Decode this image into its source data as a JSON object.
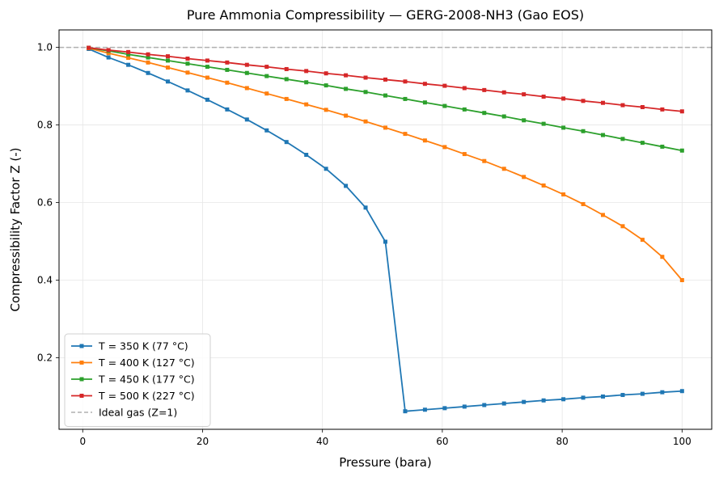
{
  "chart_data": {
    "type": "line",
    "title": "Pure Ammonia Compressibility — GERG-2008-NH3 (Gao EOS)",
    "xlabel": "Pressure (bara)",
    "ylabel": "Compressibility Factor Z (-)",
    "xlim": [
      -3.95,
      104.95
    ],
    "ylim": [
      0.0155,
      1.045
    ],
    "xticks": [
      0,
      20,
      40,
      60,
      80,
      100
    ],
    "yticks": [
      0.2,
      0.4,
      0.6,
      0.8,
      1.0
    ],
    "xtick_labels": [
      "0",
      "20",
      "40",
      "60",
      "80",
      "100"
    ],
    "ytick_labels": [
      "0.2",
      "0.4",
      "0.6",
      "0.8",
      "1.0"
    ],
    "grid": true,
    "legend_position": "lower-left",
    "x": [
      1.0,
      4.3,
      7.6,
      10.9,
      14.2,
      17.5,
      20.8,
      24.1,
      27.4,
      30.7,
      34.0,
      37.3,
      40.6,
      43.9,
      47.2,
      50.5,
      53.8,
      57.1,
      60.4,
      63.7,
      67.0,
      70.3,
      73.6,
      76.9,
      80.2,
      83.5,
      86.8,
      90.1,
      93.4,
      96.7,
      100.0
    ],
    "series": [
      {
        "name": "T = 350 K (77 °C)",
        "color": "#1f77b4",
        "values": [
          0.996,
          0.974,
          0.955,
          0.934,
          0.912,
          0.889,
          0.865,
          0.84,
          0.814,
          0.786,
          0.756,
          0.723,
          0.687,
          0.643,
          0.587,
          0.499,
          0.062,
          0.066,
          0.07,
          0.074,
          0.078,
          0.082,
          0.086,
          0.09,
          0.093,
          0.097,
          0.1,
          0.104,
          0.107,
          0.111,
          0.114
        ]
      },
      {
        "name": "T = 400 K (127 °C)",
        "color": "#ff7f0e",
        "values": [
          0.998,
          0.985,
          0.973,
          0.961,
          0.948,
          0.935,
          0.922,
          0.909,
          0.895,
          0.881,
          0.867,
          0.853,
          0.839,
          0.824,
          0.809,
          0.793,
          0.777,
          0.76,
          0.743,
          0.725,
          0.707,
          0.687,
          0.666,
          0.644,
          0.621,
          0.596,
          0.568,
          0.539,
          0.504,
          0.46,
          0.4
        ]
      },
      {
        "name": "T = 450 K (177 °C)",
        "color": "#2ca02c",
        "values": [
          0.999,
          0.991,
          0.982,
          0.974,
          0.966,
          0.958,
          0.95,
          0.942,
          0.934,
          0.926,
          0.918,
          0.91,
          0.902,
          0.893,
          0.885,
          0.876,
          0.867,
          0.858,
          0.849,
          0.84,
          0.831,
          0.822,
          0.812,
          0.803,
          0.793,
          0.784,
          0.774,
          0.764,
          0.754,
          0.744,
          0.734
        ]
      },
      {
        "name": "T = 500 K (227 °C)",
        "color": "#d62728",
        "values": [
          0.999,
          0.993,
          0.988,
          0.982,
          0.977,
          0.971,
          0.966,
          0.961,
          0.955,
          0.95,
          0.944,
          0.939,
          0.933,
          0.928,
          0.922,
          0.917,
          0.912,
          0.906,
          0.901,
          0.895,
          0.89,
          0.884,
          0.879,
          0.873,
          0.868,
          0.862,
          0.857,
          0.851,
          0.846,
          0.84,
          0.835
        ]
      }
    ],
    "reference_line": {
      "name": "Ideal gas (Z=1)",
      "y": 1.0,
      "color": "#b0b0b0",
      "style": "dashed"
    }
  }
}
